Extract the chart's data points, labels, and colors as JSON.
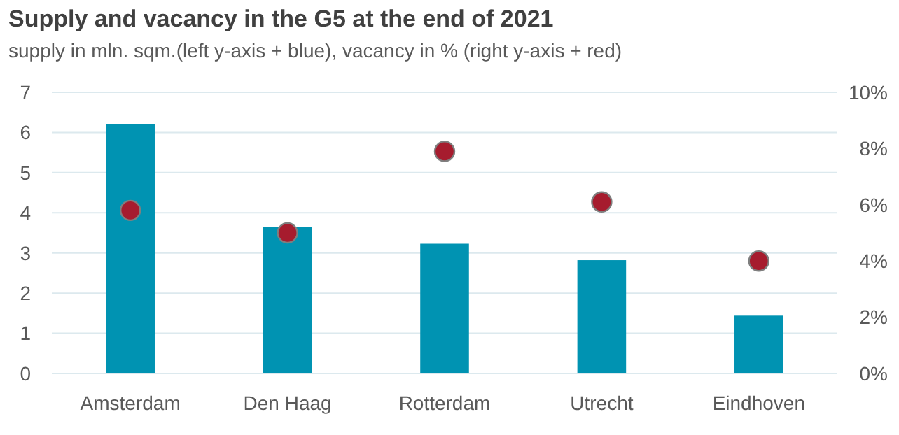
{
  "chart_data": {
    "type": "bar",
    "title": "Supply and vacancy in the G5 at the end of 2021",
    "subtitle": "supply in mln. sqm.(left y-axis + blue), vacancy in % (right y-axis + red)",
    "categories": [
      "Amsterdam",
      "Den Haag",
      "Rotterdam",
      "Utrecht",
      "Eindhoven"
    ],
    "series": [
      {
        "color": "#0093b2",
        "values": [
          6.2,
          3.65,
          3.23,
          2.82,
          1.44
        ]
      },
      {
        "type": "scatter",
        "axis": "y2",
        "color": "#a61c2e",
        "values": [
          5.8,
          5.0,
          7.9,
          6.1,
          4.0
        ]
      }
    ],
    "ylim": [
      0,
      7
    ],
    "yticks": [
      0,
      1,
      2,
      3,
      4,
      5,
      6,
      7
    ],
    "y2lim": [
      0,
      10
    ],
    "y2ticks": [
      {
        "value": 0,
        "label": "0%"
      },
      {
        "value": 2,
        "label": "2%"
      },
      {
        "value": 4,
        "label": "4%"
      },
      {
        "value": 6,
        "label": "6%"
      },
      {
        "value": 8,
        "label": "8%"
      },
      {
        "value": 10,
        "label": "10%"
      }
    ],
    "grid": "y",
    "marker": "circle"
  }
}
